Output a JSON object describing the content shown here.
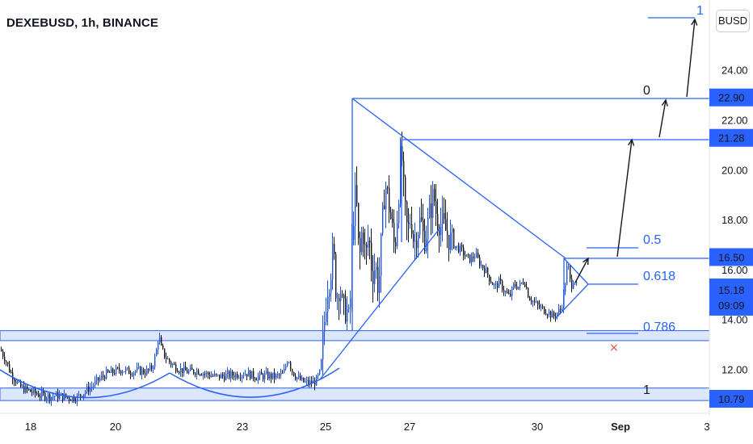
{
  "header": {
    "symbol_title": "DEXEBUSD, 1h, BINANCE",
    "currency_label": "BUSD"
  },
  "chart_data": {
    "type": "candlestick",
    "symbol": "DEXEBUSD",
    "interval": "1h",
    "exchange": "BINANCE",
    "x_ticks": [
      "18",
      "20",
      "23",
      "25",
      "27",
      "30",
      "Sep",
      "3"
    ],
    "y_ticks": [
      "12.00",
      "14.00",
      "16.00",
      "18.00",
      "20.00",
      "22.00",
      "24.00"
    ],
    "ylim": [
      10.5,
      25.0
    ],
    "price_labels": [
      {
        "value": 22.9,
        "text": "22.90"
      },
      {
        "value": 21.28,
        "text": "21.28"
      },
      {
        "value": 16.5,
        "text": "16.50"
      },
      {
        "value": 10.79,
        "text": "10.79"
      }
    ],
    "current_price": {
      "value": 15.18,
      "text": "15.18",
      "countdown": "09:09"
    },
    "fib_labels": [
      {
        "text": "1",
        "color": "#2962ff"
      },
      {
        "text": "0",
        "color": "#131722"
      },
      {
        "text": "0.5",
        "color": "#2962ff"
      },
      {
        "text": "0.618",
        "color": "#2962ff"
      },
      {
        "text": "0.786",
        "color": "#2962ff"
      },
      {
        "text": "1",
        "color": "#131722"
      }
    ],
    "support_zones": [
      {
        "from": 13.15,
        "to": 13.55
      },
      {
        "from": 10.75,
        "to": 11.25
      }
    ],
    "price_path": [
      [
        0,
        12.8
      ],
      [
        6,
        12.4
      ],
      [
        12,
        11.9
      ],
      [
        18,
        11.6
      ],
      [
        24,
        11.3
      ],
      [
        30,
        11.2
      ],
      [
        38,
        11.1
      ],
      [
        46,
        11.0
      ],
      [
        54,
        10.95
      ],
      [
        62,
        10.9
      ],
      [
        70,
        10.95
      ],
      [
        80,
        10.9
      ],
      [
        88,
        10.85
      ],
      [
        96,
        10.9
      ],
      [
        104,
        11.1
      ],
      [
        112,
        11.3
      ],
      [
        122,
        11.6
      ],
      [
        130,
        11.8
      ],
      [
        140,
        11.9
      ],
      [
        150,
        12.0
      ],
      [
        160,
        11.9
      ],
      [
        170,
        11.95
      ],
      [
        180,
        11.9
      ],
      [
        186,
        12.0
      ],
      [
        190,
        12.3
      ],
      [
        194,
        12.9
      ],
      [
        196,
        13.5
      ],
      [
        198,
        12.9
      ],
      [
        204,
        12.5
      ],
      [
        212,
        12.2
      ],
      [
        222,
        12.0
      ],
      [
        232,
        11.9
      ],
      [
        244,
        11.95
      ],
      [
        256,
        11.8
      ],
      [
        268,
        11.7
      ],
      [
        280,
        11.75
      ],
      [
        292,
        11.8
      ],
      [
        304,
        11.85
      ],
      [
        316,
        11.7
      ],
      [
        328,
        11.75
      ],
      [
        340,
        11.7
      ],
      [
        350,
        11.8
      ],
      [
        356,
        12.5
      ],
      [
        360,
        12.0
      ],
      [
        366,
        11.7
      ],
      [
        374,
        11.5
      ],
      [
        382,
        11.45
      ],
      [
        390,
        11.5
      ],
      [
        396,
        11.9
      ],
      [
        400,
        13.5
      ],
      [
        404,
        15.2
      ],
      [
        408,
        15.8
      ],
      [
        412,
        16.8
      ],
      [
        416,
        14.8
      ],
      [
        420,
        15.5
      ],
      [
        424,
        14.2
      ],
      [
        428,
        14.5
      ],
      [
        432,
        13.8
      ],
      [
        436,
        17.9
      ],
      [
        440,
        19.2
      ],
      [
        444,
        16.2
      ],
      [
        448,
        17.8
      ],
      [
        452,
        16.4
      ],
      [
        456,
        17.4
      ],
      [
        460,
        15.8
      ],
      [
        464,
        16.2
      ],
      [
        468,
        15.2
      ],
      [
        472,
        17.5
      ],
      [
        476,
        19.5
      ],
      [
        480,
        18.8
      ],
      [
        484,
        17.8
      ],
      [
        488,
        16.8
      ],
      [
        492,
        18.6
      ],
      [
        496,
        21.0
      ],
      [
        500,
        18.5
      ],
      [
        504,
        17.4
      ],
      [
        508,
        18.2
      ],
      [
        512,
        17.0
      ],
      [
        516,
        17.6
      ],
      [
        520,
        18.0
      ],
      [
        524,
        17.2
      ],
      [
        528,
        17.6
      ],
      [
        532,
        18.4
      ],
      [
        536,
        19.0
      ],
      [
        540,
        18.1
      ],
      [
        546,
        17.8
      ],
      [
        552,
        17.5
      ],
      [
        558,
        17.1
      ],
      [
        564,
        16.9
      ],
      [
        570,
        16.8
      ],
      [
        576,
        16.5
      ],
      [
        582,
        16.4
      ],
      [
        588,
        16.6
      ],
      [
        594,
        16.2
      ],
      [
        600,
        16.0
      ],
      [
        606,
        15.6
      ],
      [
        612,
        15.3
      ],
      [
        618,
        15.5
      ],
      [
        624,
        15.1
      ],
      [
        630,
        14.9
      ],
      [
        636,
        15.4
      ],
      [
        642,
        15.3
      ],
      [
        648,
        15.6
      ],
      [
        654,
        14.9
      ],
      [
        660,
        14.7
      ],
      [
        666,
        14.5
      ],
      [
        672,
        14.4
      ],
      [
        678,
        14.3
      ],
      [
        684,
        14.1
      ],
      [
        690,
        14.3
      ],
      [
        694,
        14.4
      ],
      [
        698,
        15.2
      ],
      [
        702,
        16.3
      ],
      [
        706,
        15.3
      ],
      [
        710,
        15.7
      ],
      [
        714,
        15.18
      ]
    ]
  }
}
